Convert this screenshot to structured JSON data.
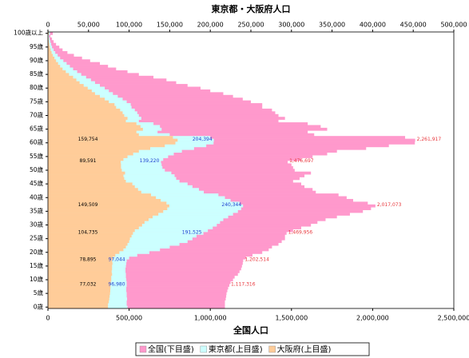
{
  "chart_data": {
    "type": "overlap-hbar",
    "title": "東京都・大阪府人口",
    "xlabel": "全国人口",
    "categories": [
      "0歳",
      null,
      null,
      null,
      null,
      "5歳",
      null,
      null,
      null,
      null,
      "10歳",
      null,
      null,
      null,
      null,
      "15歳",
      null,
      null,
      null,
      null,
      "20歳",
      null,
      null,
      null,
      null,
      "25歳",
      null,
      null,
      null,
      null,
      "30歳",
      null,
      null,
      null,
      null,
      "35歳",
      null,
      null,
      null,
      null,
      "40歳",
      null,
      null,
      null,
      null,
      "45歳",
      null,
      null,
      null,
      null,
      "50歳",
      null,
      null,
      null,
      null,
      "55歳",
      null,
      null,
      null,
      null,
      "60歳",
      null,
      null,
      null,
      null,
      "65歳",
      null,
      null,
      null,
      null,
      "70歳",
      null,
      null,
      null,
      null,
      "75歳",
      null,
      null,
      null,
      null,
      "80歳",
      null,
      null,
      null,
      null,
      "85歳",
      null,
      null,
      null,
      null,
      "90歳",
      null,
      null,
      null,
      null,
      "95歳",
      null,
      null,
      null,
      null,
      "100歳以上"
    ],
    "xlim": [
      0,
      2500000
    ],
    "xticks": [
      0,
      {
        "value": 500000,
        "label": "500,000"
      },
      {
        "value": 1000000,
        "label": "1,000,000"
      },
      {
        "value": 1500000,
        "label": "1,500,000"
      },
      {
        "value": 2000000,
        "label": "2,000,000"
      },
      {
        "value": 2500000,
        "label": "2,500,000"
      }
    ],
    "x2lim": [
      0,
      500000
    ],
    "x2ticks": [
      0,
      {
        "value": 50000,
        "label": "50,000"
      },
      {
        "value": 100000,
        "label": "100,000"
      },
      {
        "value": 150000,
        "label": "150,000"
      },
      {
        "value": 200000,
        "label": "200,000"
      },
      {
        "value": 250000,
        "label": "250,000"
      },
      {
        "value": 300000,
        "label": "300,000"
      },
      {
        "value": 350000,
        "label": "350,000"
      },
      {
        "value": 400000,
        "label": "400,000"
      },
      {
        "value": 450000,
        "label": "450,000"
      },
      {
        "value": 500000,
        "label": "500,000"
      }
    ],
    "legend": "bottom",
    "series": [
      {
        "name": "全国(下目盛)",
        "color": "#ff99cc",
        "label_color": "#e8383d",
        "axis": "x",
        "values": [
          1090000,
          1090000,
          1090000,
          1095000,
          1098000,
          1100000,
          1105000,
          1110000,
          1117316,
          1125000,
          1140000,
          1150000,
          1170000,
          1180000,
          1190000,
          1195000,
          1200000,
          1202514,
          1220000,
          1260000,
          1320000,
          1360000,
          1380000,
          1420000,
          1440000,
          1460000,
          1460000,
          1469956,
          1510000,
          1560000,
          1620000,
          1660000,
          1710000,
          1780000,
          1860000,
          1940000,
          1990000,
          2017073,
          1970000,
          1880000,
          1840000,
          1790000,
          1650000,
          1630000,
          1580000,
          1560000,
          1510000,
          1550000,
          1580000,
          1620000,
          1520000,
          1510000,
          1500000,
          1476697,
          1560000,
          1630000,
          1720000,
          1780000,
          1960000,
          2100000,
          2260000,
          2261917,
          2200000,
          1640000,
          1600000,
          1720000,
          1680000,
          1600000,
          1420000,
          1460000,
          1420000,
          1400000,
          1380000,
          1320000,
          1320000,
          1250000,
          1200000,
          1140000,
          1080000,
          1000000,
          940000,
          860000,
          790000,
          730000,
          650000,
          560000,
          490000,
          420000,
          370000,
          320000,
          260000,
          210000,
          160000,
          120000,
          90000,
          70000,
          50000,
          35000,
          25000,
          15000,
          30000
        ],
        "value_labels": [
          null,
          null,
          null,
          null,
          null,
          null,
          null,
          null,
          "1,117,316",
          null,
          null,
          null,
          null,
          null,
          null,
          null,
          null,
          "1,202,514",
          null,
          null,
          null,
          null,
          null,
          null,
          null,
          null,
          null,
          "1,469,956",
          null,
          null,
          null,
          null,
          null,
          null,
          null,
          null,
          null,
          "2,017,073",
          null,
          null,
          null,
          null,
          null,
          null,
          null,
          null,
          null,
          null,
          null,
          null,
          null,
          null,
          null,
          "1,476,697",
          null,
          null,
          null,
          null,
          null,
          null,
          null,
          "2,261,917",
          null,
          null,
          null,
          null,
          null,
          null,
          null,
          null,
          null,
          null,
          null,
          null,
          null,
          null,
          null,
          null,
          null,
          null,
          null,
          null,
          null,
          null,
          null,
          null,
          null,
          null,
          null,
          null,
          null,
          null,
          null,
          null,
          null,
          null,
          null,
          null,
          null,
          null,
          null
        ]
      },
      {
        "name": "東京都(上目盛)",
        "color": "#ccffff",
        "label_color": "#1f3fd0",
        "axis": "x2",
        "values": [
          98000,
          97000,
          97000,
          97500,
          97000,
          97000,
          96500,
          96500,
          96980,
          97000,
          96500,
          96000,
          96000,
          95500,
          95500,
          96000,
          96500,
          97044,
          100000,
          110000,
          125000,
          138000,
          150000,
          162000,
          172000,
          178000,
          183000,
          191525,
          197000,
          203000,
          208000,
          212000,
          216000,
          222000,
          228000,
          234000,
          238000,
          240344,
          236000,
          225000,
          218000,
          210000,
          192000,
          186000,
          178000,
          172000,
          162000,
          158000,
          156000,
          152000,
          144000,
          141000,
          140000,
          139220,
          142000,
          148000,
          155000,
          165000,
          180000,
          195000,
          204000,
          204394,
          200000,
          150000,
          135000,
          140000,
          138000,
          130000,
          112000,
          115000,
          112000,
          110000,
          107000,
          103000,
          102000,
          97000,
          92000,
          86000,
          80000,
          75000,
          70000,
          64000,
          58000,
          53000,
          47000,
          41000,
          36000,
          31000,
          27000,
          23000,
          19000,
          15000,
          12000,
          9000,
          7000,
          5000,
          4000,
          3000,
          2000,
          1200,
          2500
        ],
        "value_labels": [
          null,
          null,
          null,
          null,
          null,
          null,
          null,
          null,
          "96,980",
          null,
          null,
          null,
          null,
          null,
          null,
          null,
          null,
          "97,044",
          null,
          null,
          null,
          null,
          null,
          null,
          null,
          null,
          null,
          "191,525",
          null,
          null,
          null,
          null,
          null,
          null,
          null,
          null,
          null,
          "240,344",
          null,
          null,
          null,
          null,
          null,
          null,
          null,
          null,
          null,
          null,
          null,
          null,
          null,
          null,
          null,
          "139,220",
          null,
          null,
          null,
          null,
          null,
          null,
          null,
          "204,394",
          null,
          null,
          null,
          null,
          null,
          null,
          null,
          null,
          null,
          null,
          null,
          null,
          null,
          null,
          null,
          null,
          null,
          null,
          null,
          null,
          null,
          null,
          null,
          null,
          null,
          null,
          null,
          null,
          null,
          null,
          null,
          null,
          null,
          null,
          null,
          null,
          null,
          null,
          null
        ]
      },
      {
        "name": "大阪府(上目盛)",
        "color": "#ffcc99",
        "label_color": "#000000",
        "axis": "x2",
        "values": [
          74000,
          74000,
          75000,
          75500,
          76000,
          76500,
          76800,
          77000,
          77032,
          77500,
          78000,
          78000,
          79000,
          78500,
          79000,
          79000,
          79500,
          78895,
          80000,
          83000,
          88000,
          93000,
          96000,
          98000,
          100000,
          101000,
          103000,
          104735,
          107000,
          112000,
          116000,
          119000,
          124000,
          129000,
          136000,
          142000,
          147000,
          149509,
          146000,
          139000,
          133000,
          127000,
          115000,
          111000,
          107000,
          104000,
          96000,
          94000,
          93000,
          95000,
          91000,
          90000,
          90000,
          89591,
          93000,
          98000,
          105000,
          112000,
          126000,
          144000,
          157000,
          159754,
          154000,
          112000,
          109000,
          117000,
          114000,
          109000,
          96000,
          98000,
          94000,
          92000,
          89000,
          84000,
          82000,
          75000,
          70000,
          64000,
          58000,
          54000,
          49000,
          44000,
          39000,
          35000,
          31000,
          26000,
          22000,
          18000,
          15000,
          12500,
          10000,
          8000,
          6000,
          4500,
          3300,
          2400,
          1700,
          1200,
          800,
          500,
          1000
        ],
        "value_labels": [
          null,
          null,
          null,
          null,
          null,
          null,
          null,
          null,
          "77,032",
          null,
          null,
          null,
          null,
          null,
          null,
          null,
          null,
          "78,895",
          null,
          null,
          null,
          null,
          null,
          null,
          null,
          null,
          null,
          "104,735",
          null,
          null,
          null,
          null,
          null,
          null,
          null,
          null,
          null,
          "149,509",
          null,
          null,
          null,
          null,
          null,
          null,
          null,
          null,
          null,
          null,
          null,
          null,
          null,
          null,
          null,
          "89,591",
          null,
          null,
          null,
          null,
          null,
          null,
          null,
          "159,754",
          null,
          null,
          null,
          null,
          null,
          null,
          null,
          null,
          null,
          null,
          null,
          null,
          null,
          null,
          null,
          null,
          null,
          null,
          null,
          null,
          null,
          null,
          null,
          null,
          null,
          null,
          null,
          null,
          null,
          null,
          null,
          null,
          null,
          null,
          null,
          null,
          null,
          null,
          null
        ]
      }
    ]
  }
}
